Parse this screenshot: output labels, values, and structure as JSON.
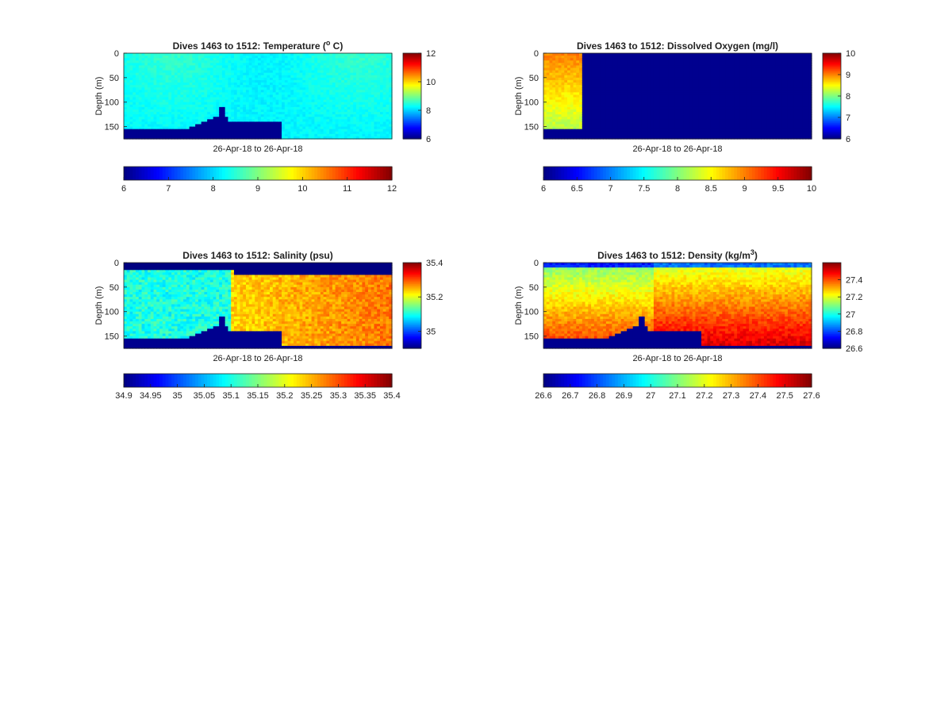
{
  "colors": {
    "bathymetry": "#00008F",
    "axes": "#222222",
    "background": "#ffffff"
  },
  "colormap": "jet",
  "chart_data": [
    {
      "type": "heatmap",
      "title": "Dives 1463 to 1512: Temperature (",
      "title_sup": "o",
      "title_end": " C)",
      "ylabel": "Depth (m)",
      "xlabel": "26-Apr-18 to 26-Apr-18",
      "ylim": [
        0,
        175
      ],
      "yticks": [
        "0",
        "50",
        "100",
        "150"
      ],
      "ytick_values": [
        0,
        50,
        100,
        150
      ],
      "clim": [
        6,
        12
      ],
      "colorbar_ticks": [
        "6",
        "8",
        "10",
        "12"
      ],
      "colorbar_tick_values": [
        6,
        8,
        10,
        12
      ],
      "h_colorbar_ticks": [
        "6",
        "7",
        "8",
        "9",
        "10",
        "11",
        "12"
      ],
      "h_colorbar_tick_values": [
        6,
        7,
        8,
        9,
        10,
        11,
        12
      ],
      "base_value": 8.3,
      "field": "temperature"
    },
    {
      "type": "heatmap",
      "title": "Dives 1463 to 1512: Dissolved Oxygen (mg/l)",
      "title_sup": "",
      "title_end": "",
      "ylabel": "Depth (m)",
      "xlabel": "26-Apr-18 to 26-Apr-18",
      "ylim": [
        0,
        175
      ],
      "yticks": [
        "0",
        "50",
        "100",
        "150"
      ],
      "ytick_values": [
        0,
        50,
        100,
        150
      ],
      "clim": [
        6,
        10
      ],
      "colorbar_ticks": [
        "6",
        "7",
        "8",
        "9",
        "10"
      ],
      "colorbar_tick_values": [
        6,
        7,
        8,
        9,
        10
      ],
      "h_colorbar_ticks": [
        "6",
        "6.5",
        "7",
        "7.5",
        "8",
        "8.5",
        "9",
        "9.5",
        "10"
      ],
      "h_colorbar_tick_values": [
        6,
        6.5,
        7,
        7.5,
        8,
        8.5,
        9,
        9.5,
        10
      ],
      "base_value": 8.7,
      "field": "oxygen"
    },
    {
      "type": "heatmap",
      "title": "Dives 1463 to 1512: Salinity (psu)",
      "title_sup": "",
      "title_end": "",
      "ylabel": "Depth (m)",
      "xlabel": "26-Apr-18 to 26-Apr-18",
      "ylim": [
        0,
        175
      ],
      "yticks": [
        "0",
        "50",
        "100",
        "150"
      ],
      "ytick_values": [
        0,
        50,
        100,
        150
      ],
      "clim": [
        34.9,
        35.4
      ],
      "colorbar_ticks": [
        "35",
        "35.2",
        "35.4"
      ],
      "colorbar_tick_values": [
        35,
        35.2,
        35.4
      ],
      "h_colorbar_ticks": [
        "34.9",
        "34.95",
        "35",
        "35.05",
        "35.1",
        "35.15",
        "35.2",
        "35.25",
        "35.3",
        "35.35",
        "35.4"
      ],
      "h_colorbar_tick_values": [
        34.9,
        34.95,
        35,
        35.05,
        35.1,
        35.15,
        35.2,
        35.25,
        35.3,
        35.35,
        35.4
      ],
      "base_value": 35.15,
      "field": "salinity"
    },
    {
      "type": "heatmap",
      "title": "Dives 1463 to 1512: Density (kg/m",
      "title_sup": "3",
      "title_end": ")",
      "ylabel": "Depth (m)",
      "xlabel": "26-Apr-18 to 26-Apr-18",
      "ylim": [
        0,
        175
      ],
      "yticks": [
        "0",
        "50",
        "100",
        "150"
      ],
      "ytick_values": [
        0,
        50,
        100,
        150
      ],
      "clim": [
        26.6,
        27.6
      ],
      "colorbar_ticks": [
        "26.6",
        "26.8",
        "27",
        "27.2",
        "27.4"
      ],
      "colorbar_tick_values": [
        26.6,
        26.8,
        27,
        27.2,
        27.4
      ],
      "h_colorbar_ticks": [
        "26.6",
        "26.7",
        "26.8",
        "26.9",
        "27",
        "27.1",
        "27.2",
        "27.3",
        "27.4",
        "27.5",
        "27.6"
      ],
      "h_colorbar_tick_values": [
        26.6,
        26.7,
        26.8,
        26.9,
        27,
        27.1,
        27.2,
        27.3,
        27.4,
        27.5,
        27.6
      ],
      "base_value": 27.35,
      "field": "density"
    }
  ]
}
